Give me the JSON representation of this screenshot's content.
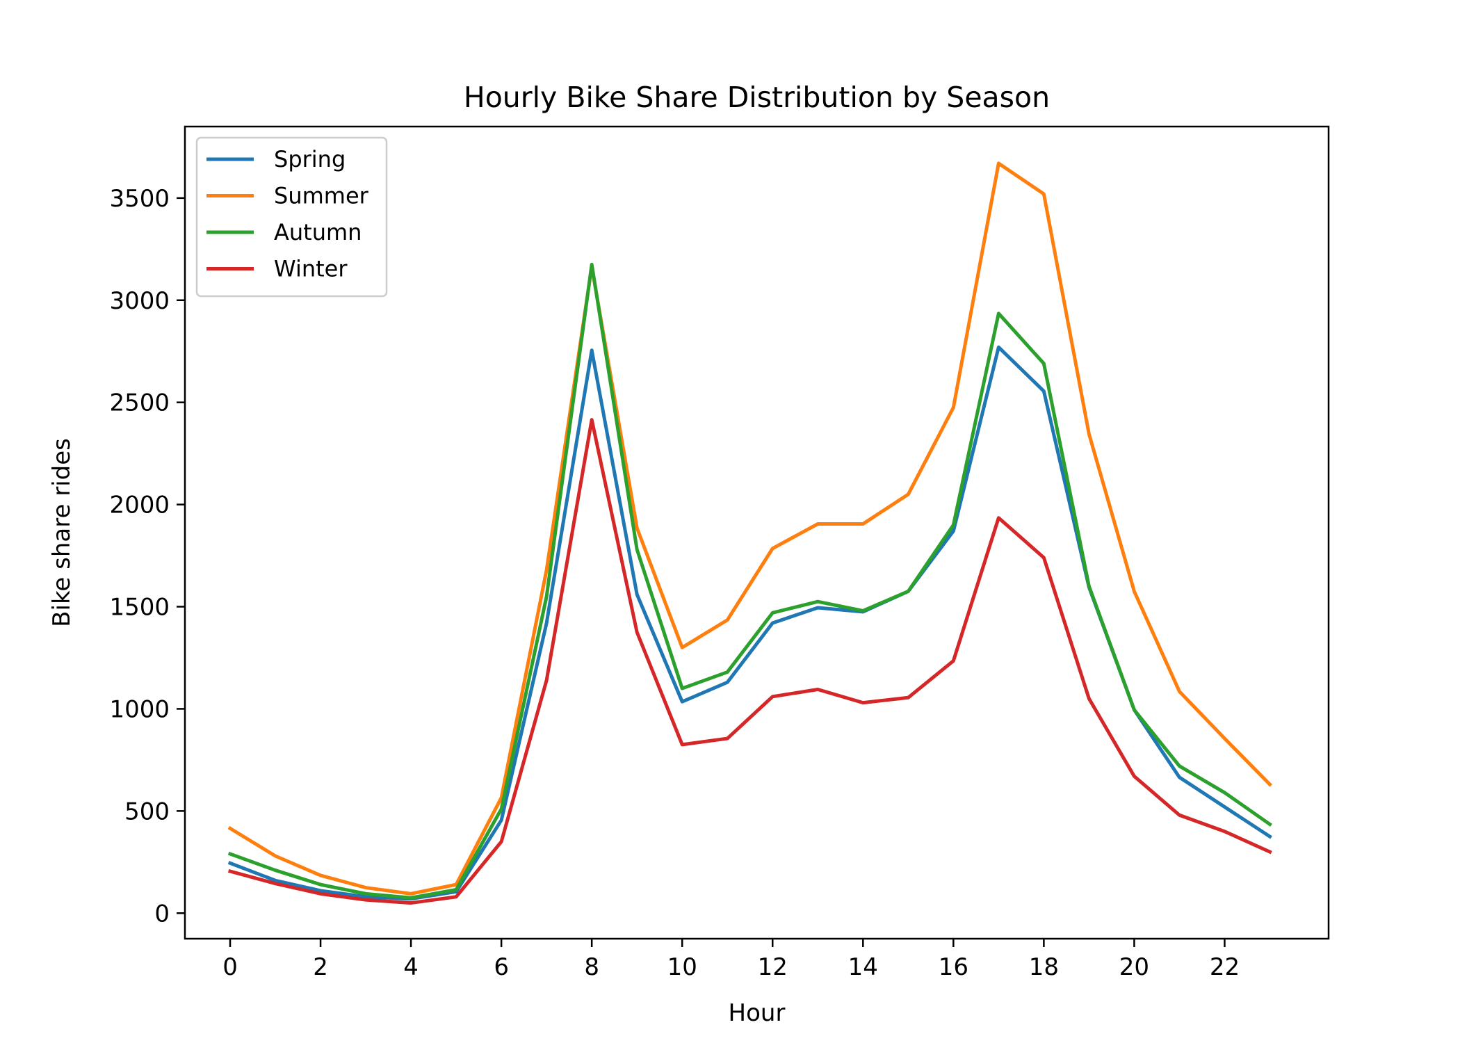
{
  "chart_data": {
    "type": "line",
    "title": "Hourly Bike Share Distribution by Season",
    "xlabel": "Hour",
    "ylabel": "Bike share rides",
    "x": [
      0,
      1,
      2,
      3,
      4,
      5,
      6,
      7,
      8,
      9,
      10,
      11,
      12,
      13,
      14,
      15,
      16,
      17,
      18,
      19,
      20,
      21,
      22,
      23
    ],
    "xlim": [
      -1,
      24.3
    ],
    "ylim": [
      -125,
      3850
    ],
    "x_ticks": [
      0,
      2,
      4,
      6,
      8,
      10,
      12,
      14,
      16,
      18,
      20,
      22
    ],
    "y_ticks": [
      0,
      500,
      1000,
      1500,
      2000,
      2500,
      3000,
      3500
    ],
    "grid": false,
    "legend_position": "top-left",
    "series": [
      {
        "name": "Spring",
        "color": "#1f77b4",
        "values": [
          245,
          160,
          110,
          80,
          70,
          105,
          455,
          1420,
          2755,
          1560,
          1035,
          1130,
          1420,
          1495,
          1475,
          1575,
          1870,
          2770,
          2555,
          1595,
          995,
          665,
          520,
          375
        ]
      },
      {
        "name": "Summer",
        "color": "#ff7f0e",
        "values": [
          415,
          280,
          185,
          125,
          95,
          140,
          565,
          1680,
          3165,
          1885,
          1300,
          1435,
          1785,
          1905,
          1905,
          2050,
          2475,
          3670,
          3520,
          2345,
          1575,
          1085,
          855,
          630
        ]
      },
      {
        "name": "Autumn",
        "color": "#2ca02c",
        "values": [
          290,
          210,
          140,
          95,
          75,
          115,
          510,
          1550,
          3175,
          1780,
          1100,
          1180,
          1470,
          1525,
          1480,
          1575,
          1900,
          2935,
          2690,
          1600,
          995,
          720,
          590,
          435
        ]
      },
      {
        "name": "Winter",
        "color": "#d62728",
        "values": [
          205,
          145,
          95,
          65,
          50,
          80,
          350,
          1140,
          2415,
          1375,
          825,
          855,
          1060,
          1095,
          1030,
          1055,
          1235,
          1935,
          1740,
          1050,
          670,
          480,
          400,
          300
        ]
      }
    ]
  }
}
